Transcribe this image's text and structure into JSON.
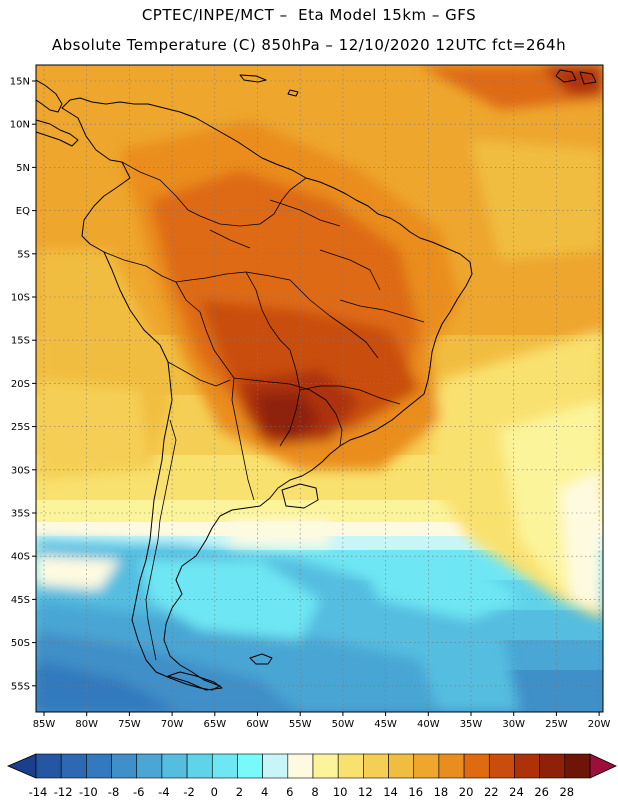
{
  "header": {
    "line1": "CPTEC/INPE/MCT –  Eta Model 15km – GFS",
    "line2": "Absolute Temperature (C) 850hPa – 12/10/2020 12UTC fct=264h"
  },
  "map": {
    "lat_labels": [
      "15N",
      "10N",
      "5N",
      "EQ",
      "5S",
      "10S",
      "15S",
      "20S",
      "25S",
      "30S",
      "35S",
      "40S",
      "45S",
      "50S",
      "55S"
    ],
    "lon_labels": [
      "85W",
      "80W",
      "75W",
      "70W",
      "65W",
      "60W",
      "55W",
      "50W",
      "45W",
      "40W",
      "35W",
      "30W",
      "25W",
      "20W"
    ]
  },
  "colorbar": {
    "levels": [
      "-14",
      "-12",
      "-10",
      "-8",
      "-6",
      "-4",
      "-2",
      "0",
      "2",
      "4",
      "6",
      "8",
      "10",
      "12",
      "14",
      "16",
      "18",
      "20",
      "22",
      "24",
      "26",
      "28"
    ],
    "colors": [
      "#1a3f8c",
      "#2456a3",
      "#2d69b3",
      "#3379bd",
      "#3f8fc8",
      "#4aa6d4",
      "#55bde0",
      "#5fd3ea",
      "#6ee6f3",
      "#78fafa",
      "#c8f6f8",
      "#fefae0",
      "#fcf49a",
      "#f9e16f",
      "#f5cf55",
      "#f1bd40",
      "#eea62d",
      "#ea8d1f",
      "#de6a12",
      "#c94d0c",
      "#ad320a",
      "#8e2108",
      "#6e1508",
      "#9c0e3c"
    ]
  }
}
